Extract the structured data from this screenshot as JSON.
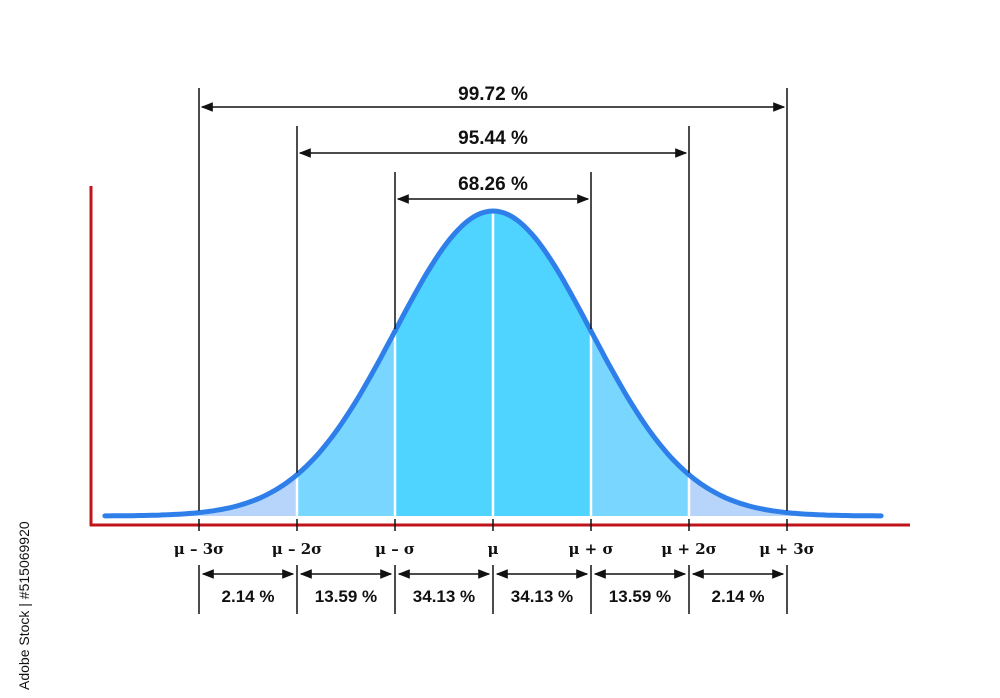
{
  "chart_data": {
    "type": "area",
    "distribution": "normal",
    "x_ticks": [
      "μ – 3σ",
      "μ – 2σ",
      "μ – σ",
      "μ",
      "μ + σ",
      "μ + 2σ",
      "μ + 3σ"
    ],
    "x_range_sigma": [
      -4,
      4
    ],
    "bands": [
      {
        "from": -3,
        "to": -2,
        "label": "2.14 %",
        "percent": 2.14
      },
      {
        "from": -2,
        "to": -1,
        "label": "13.59 %",
        "percent": 13.59
      },
      {
        "from": -1,
        "to": 0,
        "label": "34.13 %",
        "percent": 34.13
      },
      {
        "from": 0,
        "to": 1,
        "label": "34.13 %",
        "percent": 34.13
      },
      {
        "from": 1,
        "to": 2,
        "label": "13.59 %",
        "percent": 13.59
      },
      {
        "from": 2,
        "to": 3,
        "label": "2.14 %",
        "percent": 2.14
      }
    ],
    "intervals": [
      {
        "k": 1,
        "label": "68.26 %",
        "percent": 68.26
      },
      {
        "k": 2,
        "label": "95.44 %",
        "percent": 95.44
      },
      {
        "k": 3,
        "label": "99.72 %",
        "percent": 99.72
      }
    ],
    "colors": {
      "curve": "#2f7fea",
      "fill_inner": "#4fd4ff",
      "fill_middle": "#79d7ff",
      "fill_outer": "#b7d4fb",
      "axis": "#c0141b",
      "lines": "#111111"
    }
  },
  "credit": "Adobe Stock | #515069920"
}
